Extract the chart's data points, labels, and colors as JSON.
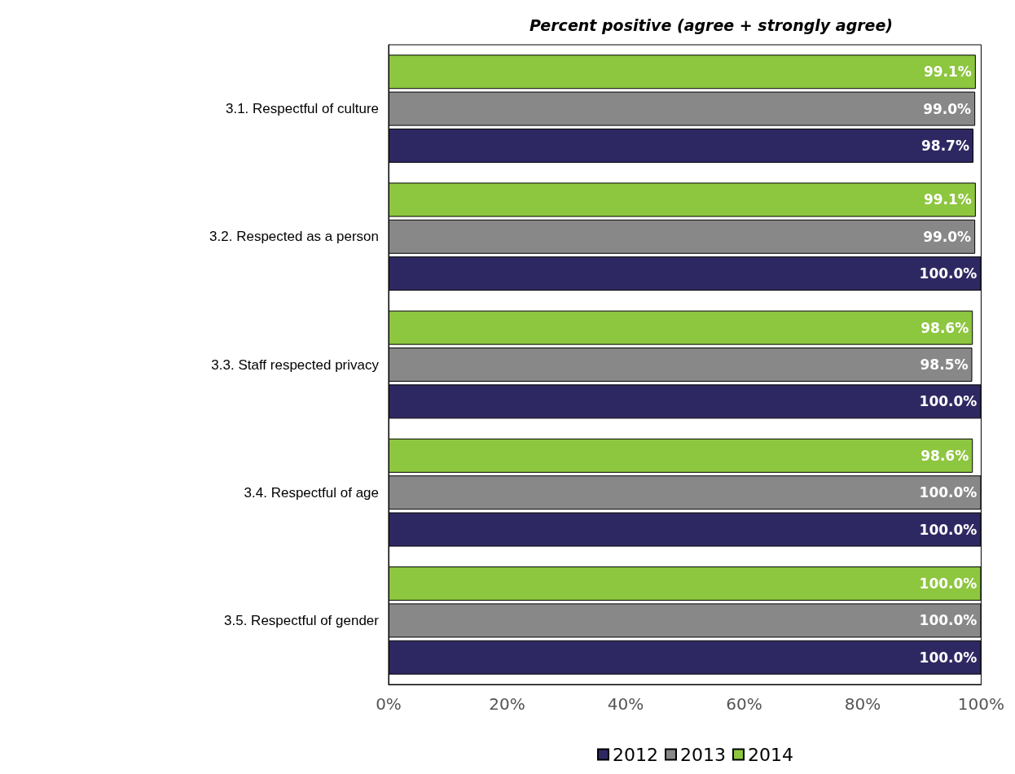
{
  "chart_data": {
    "type": "bar",
    "orientation": "horizontal",
    "title": "Percent positive (agree + strongly agree)",
    "categories": [
      "3.1. Respectful of culture",
      "3.2. Respected as a person",
      "3.3. Staff respected privacy",
      "3.4. Respectful of age",
      "3.5. Respectful of gender"
    ],
    "series": [
      {
        "name": "2012",
        "color": "#2e2862",
        "values": [
          98.7,
          100.0,
          100.0,
          100.0,
          100.0
        ],
        "value_labels": [
          "98.7%",
          "100.0%",
          "100.0%",
          "100.0%",
          "100.0%"
        ]
      },
      {
        "name": "2013",
        "color": "#888888",
        "values": [
          99.0,
          99.0,
          98.5,
          100.0,
          100.0
        ],
        "value_labels": [
          "99.0%",
          "99.0%",
          "98.5%",
          "100.0%",
          "100.0%"
        ]
      },
      {
        "name": "2014",
        "color": "#8dc63f",
        "values": [
          99.1,
          99.1,
          98.6,
          98.6,
          100.0
        ],
        "value_labels": [
          "99.1%",
          "99.1%",
          "98.6%",
          "98.6%",
          "100.0%"
        ]
      }
    ],
    "xlim": [
      0,
      100
    ],
    "xticks": [
      {
        "value": 0,
        "label": "0%"
      },
      {
        "value": 20,
        "label": "20%"
      },
      {
        "value": 40,
        "label": "40%"
      },
      {
        "value": 60,
        "label": "60%"
      },
      {
        "value": 80,
        "label": "80%"
      },
      {
        "value": 100,
        "label": "100%"
      }
    ],
    "grid": false,
    "legend": "bottom"
  }
}
